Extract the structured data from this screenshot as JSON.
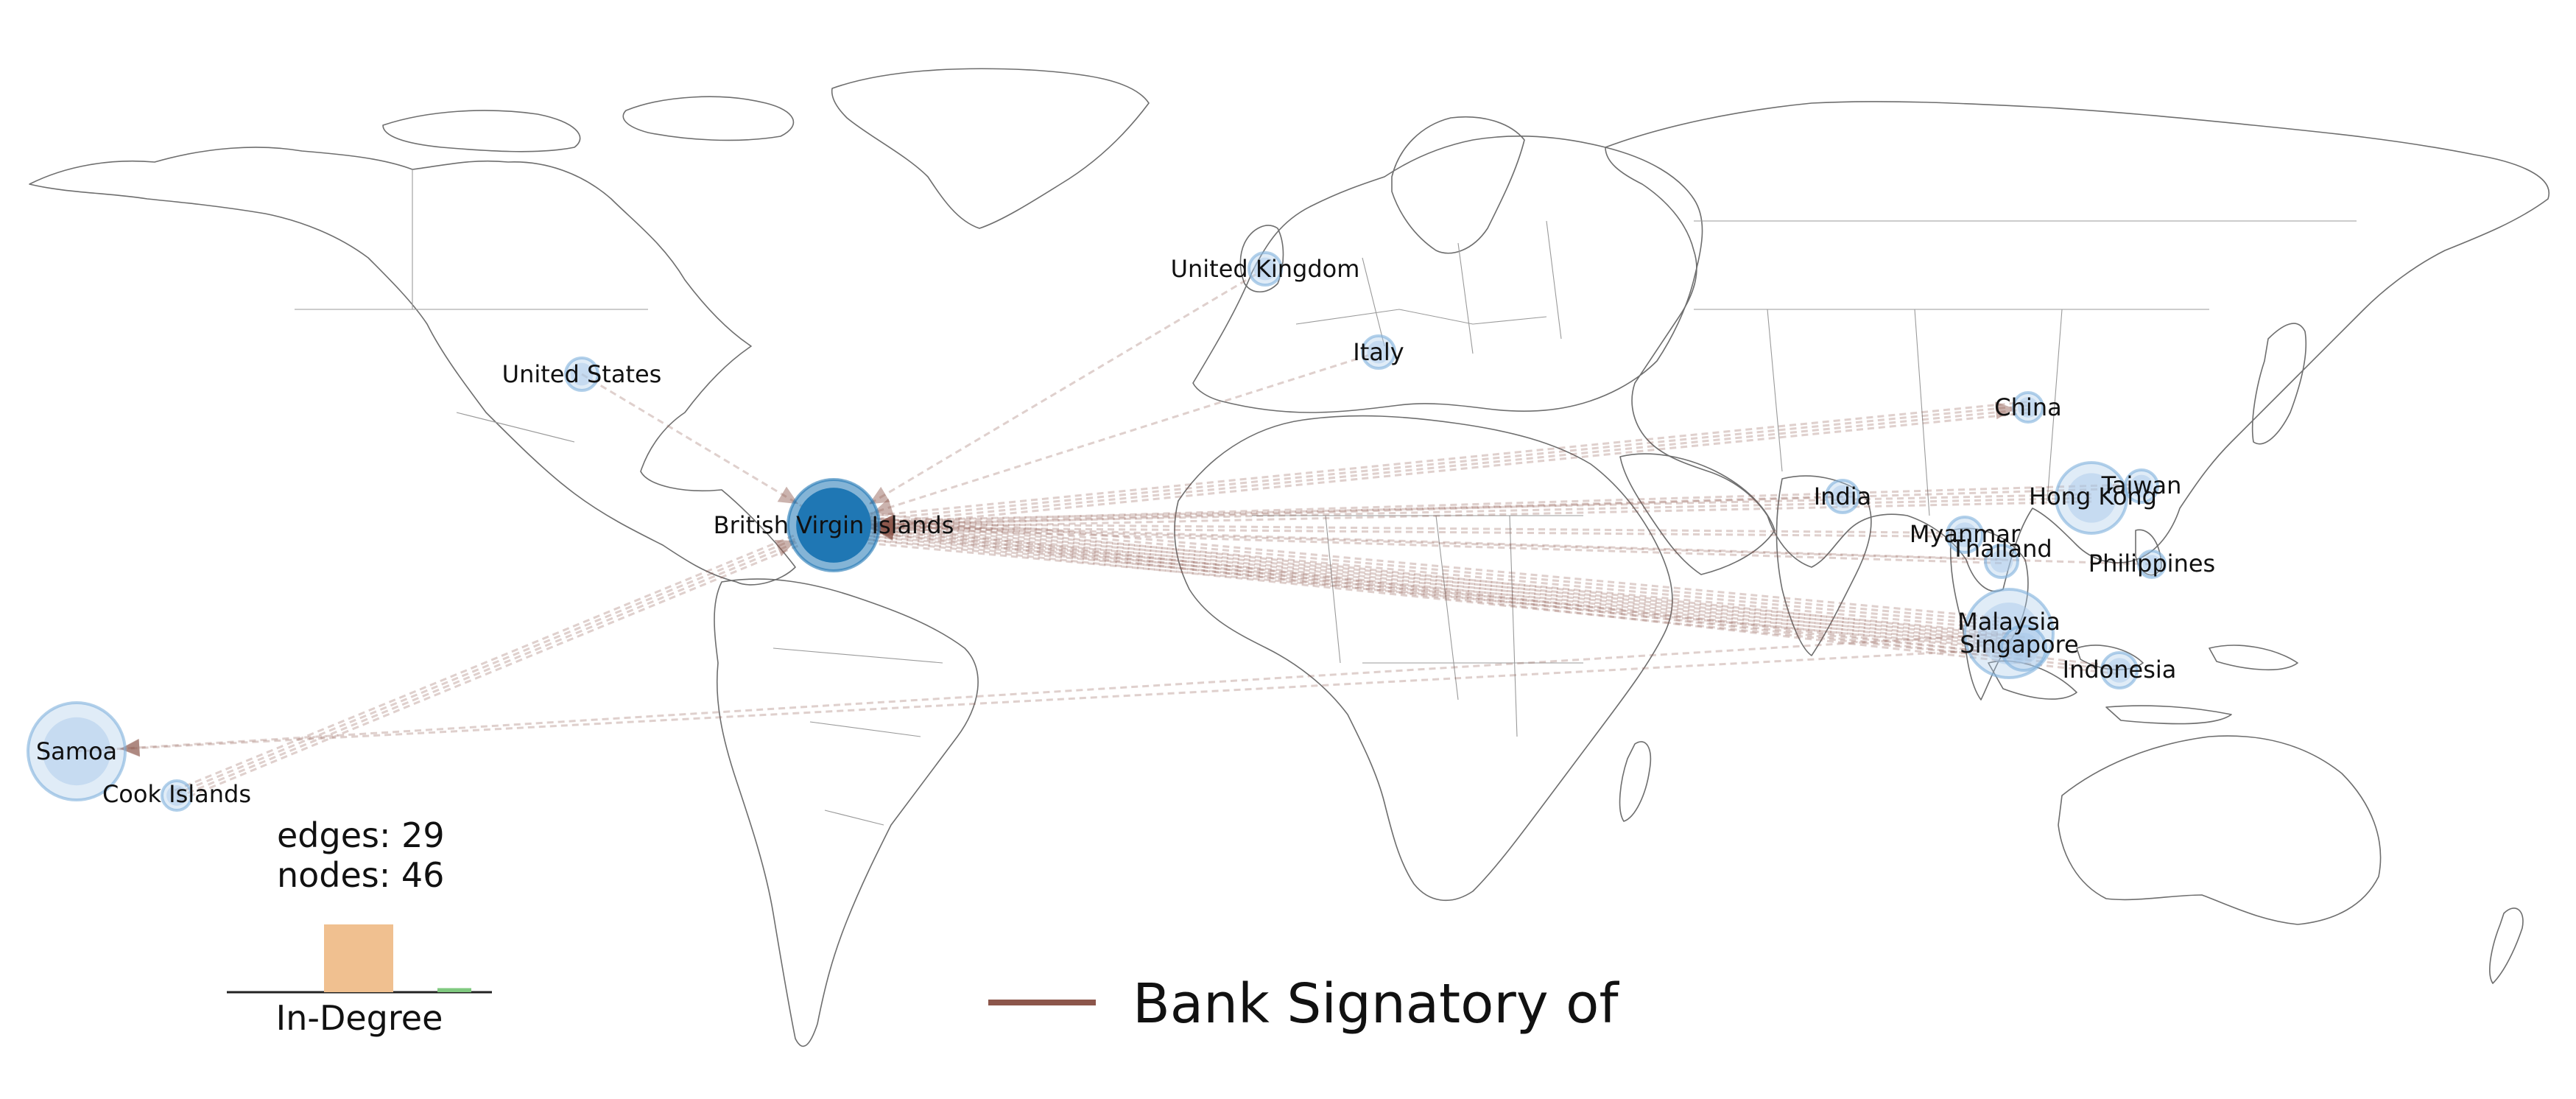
{
  "map": {
    "nodes": [
      {
        "name": "British Virgin Islands",
        "label": "British Virgin Islands",
        "kind": "hub"
      },
      {
        "name": "United States",
        "label": "United States"
      },
      {
        "name": "United Kingdom",
        "label": "United Kingdom"
      },
      {
        "name": "Italy",
        "label": "Italy"
      },
      {
        "name": "China",
        "label": "China"
      },
      {
        "name": "India",
        "label": "India"
      },
      {
        "name": "Hong Kong",
        "label": "Hong Kong"
      },
      {
        "name": "Taiwan",
        "label": "Taiwan"
      },
      {
        "name": "Myanmar",
        "label": "Myanmar"
      },
      {
        "name": "Thailand",
        "label": "Thailand"
      },
      {
        "name": "Philippines",
        "label": "Philippines"
      },
      {
        "name": "Malaysia",
        "label": "Malaysia"
      },
      {
        "name": "Singapore",
        "label": "Singapore"
      },
      {
        "name": "Indonesia",
        "label": "Indonesia"
      },
      {
        "name": "Samoa",
        "label": "Samoa"
      },
      {
        "name": "Cook Islands",
        "label": "Cook Islands"
      }
    ],
    "edges": [
      {
        "from": "Malaysia",
        "to": "British Virgin Islands",
        "weight": 9
      },
      {
        "from": "Singapore",
        "to": "British Virgin Islands",
        "weight": 7
      },
      {
        "from": "Indonesia",
        "to": "British Virgin Islands",
        "weight": 3
      },
      {
        "from": "Hong Kong",
        "to": "British Virgin Islands",
        "weight": 3
      },
      {
        "from": "Taiwan",
        "to": "British Virgin Islands",
        "weight": 2
      },
      {
        "from": "Myanmar",
        "to": "British Virgin Islands",
        "weight": 2
      },
      {
        "from": "Thailand",
        "to": "British Virgin Islands",
        "weight": 2
      },
      {
        "from": "India",
        "to": "British Virgin Islands",
        "weight": 1
      },
      {
        "from": "Philippines",
        "to": "British Virgin Islands",
        "weight": 1
      },
      {
        "from": "United States",
        "to": "British Virgin Islands",
        "weight": 1
      },
      {
        "from": "United Kingdom",
        "to": "British Virgin Islands",
        "weight": 1
      },
      {
        "from": "Italy",
        "to": "British Virgin Islands",
        "weight": 1
      },
      {
        "from": "Cook Islands",
        "to": "British Virgin Islands",
        "weight": 4
      },
      {
        "from": "British Virgin Islands",
        "to": "China",
        "weight": 4
      },
      {
        "from": "Singapore",
        "to": "Samoa",
        "weight": 1
      },
      {
        "from": "Malaysia",
        "to": "Samoa",
        "weight": 1
      }
    ]
  },
  "stats": {
    "edges_label": "edges: 29",
    "nodes_label": "nodes: 46"
  },
  "histogram": {
    "xlabel": "In-Degree",
    "bars": [
      {
        "value": 1.0,
        "color": "#f0c090"
      },
      {
        "value": 0.06,
        "color": "#7fc97f"
      }
    ]
  },
  "legend": {
    "label": "Bank Signatory of",
    "color": "#8c564b"
  },
  "colors": {
    "node_fill": "#a6c8e8",
    "hub_fill": "#1f77b4",
    "edge": "#8c564b"
  }
}
